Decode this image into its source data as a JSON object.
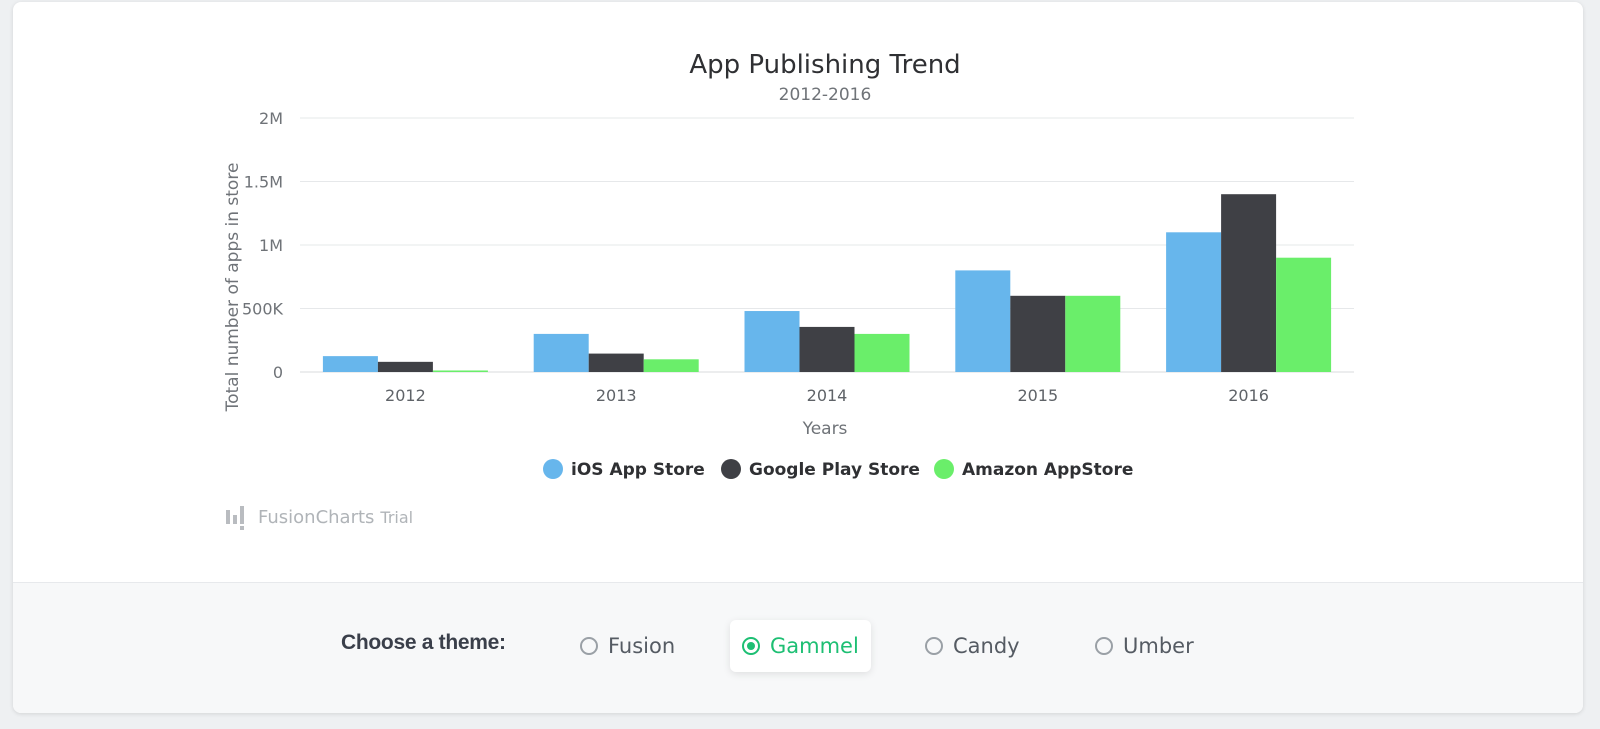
{
  "chart_data": {
    "type": "bar",
    "title": "App Publishing Trend",
    "subtitle": "2012-2016",
    "xlabel": "Years",
    "ylabel": "Total number of apps in store",
    "categories": [
      "2012",
      "2013",
      "2014",
      "2015",
      "2016"
    ],
    "ylim": [
      0,
      2000000
    ],
    "y_ticks": [
      {
        "value": 0,
        "label": "0"
      },
      {
        "value": 500000,
        "label": "500K"
      },
      {
        "value": 1000000,
        "label": "1M"
      },
      {
        "value": 1500000,
        "label": "1.5M"
      },
      {
        "value": 2000000,
        "label": "2M"
      }
    ],
    "grid": true,
    "legend_position": "bottom",
    "series": [
      {
        "name": "iOS App Store",
        "color": "#67b6ec",
        "values": [
          125000,
          300000,
          480000,
          800000,
          1100000
        ]
      },
      {
        "name": "Google Play Store",
        "color": "#3f4045",
        "values": [
          80000,
          145000,
          355000,
          600000,
          1400000
        ]
      },
      {
        "name": "Amazon AppStore",
        "color": "#6aee6a",
        "values": [
          12000,
          100000,
          300000,
          600000,
          900000
        ]
      }
    ]
  },
  "watermark": {
    "brand": "FusionCharts",
    "suffix": "Trial"
  },
  "theme_selector": {
    "label": "Choose a theme:",
    "accent_color": "#1dbf73",
    "options": [
      {
        "label": "Fusion",
        "selected": false
      },
      {
        "label": "Gammel",
        "selected": true
      },
      {
        "label": "Candy",
        "selected": false
      },
      {
        "label": "Umber",
        "selected": false
      }
    ]
  }
}
